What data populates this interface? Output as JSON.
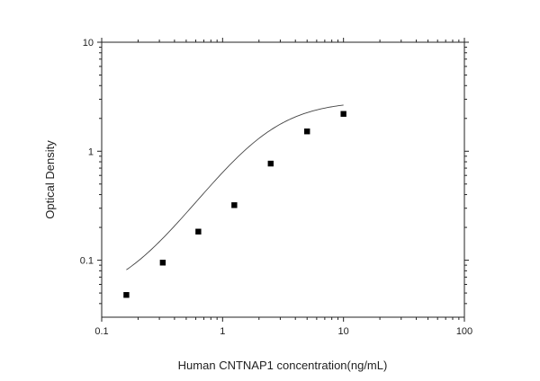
{
  "chart_data": {
    "type": "scatter",
    "title": "",
    "xlabel": "Human CNTNAP1 concentration(ng/mL)",
    "ylabel": "Optical Density",
    "x_scale": "log",
    "y_scale": "log",
    "xlim": [
      0.1,
      100
    ],
    "ylim": [
      0.03,
      10
    ],
    "x_ticks": [
      0.1,
      1,
      10,
      100
    ],
    "x_tick_labels": [
      "0.1",
      "1",
      "10",
      "100"
    ],
    "y_ticks": [
      0.1,
      1,
      10
    ],
    "y_tick_labels": [
      "0.1",
      "1",
      "10"
    ],
    "grid": false,
    "legend": "none",
    "marker_color": "#000000",
    "line_color": "#444444",
    "series": [
      {
        "x": [
          0.16,
          0.32,
          0.63,
          1.25,
          2.5,
          5,
          10
        ],
        "y": [
          0.048,
          0.095,
          0.183,
          0.32,
          0.77,
          1.52,
          2.2
        ]
      }
    ],
    "fit_curve": {
      "type": "4PL",
      "x_range": [
        0.16,
        10
      ]
    }
  }
}
